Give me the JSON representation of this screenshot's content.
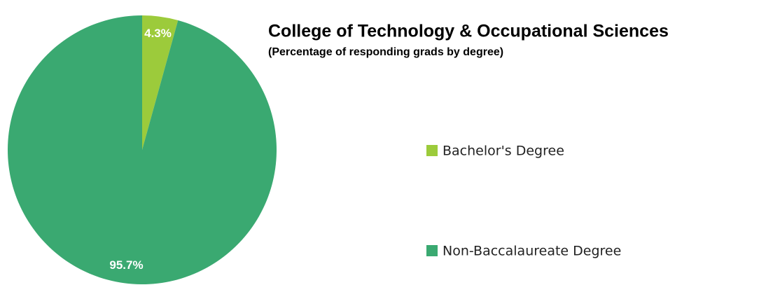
{
  "chart_data": {
    "type": "pie",
    "title": "College of Technology & Occupational Sciences",
    "subtitle": "(Percentage of responding grads by degree)",
    "categories": [
      "Bachelor's Degree",
      "Non-Baccalaureate Degree"
    ],
    "values": [
      4.3,
      95.7
    ],
    "value_labels": [
      "4.3%",
      "95.7%"
    ],
    "colors": [
      "#9ccb3b",
      "#3aa971"
    ]
  }
}
